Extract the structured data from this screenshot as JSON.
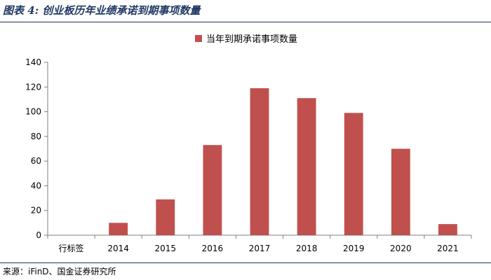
{
  "header": {
    "title": "图表 4:  创业板历年业绩承诺到期事项数量"
  },
  "footer": {
    "source": "来源：iFinD、国金证券研究所"
  },
  "colors": {
    "bar": "#c0504d",
    "rule": "#1f3864",
    "axis": "#7f7f7f"
  },
  "chart_data": {
    "type": "bar",
    "categories": [
      "行标签",
      "2014",
      "2015",
      "2016",
      "2017",
      "2018",
      "2019",
      "2020",
      "2021"
    ],
    "series": [
      {
        "name": "当年到期承诺事项数量",
        "values": [
          0,
          10,
          29,
          73,
          119,
          111,
          99,
          70,
          9
        ]
      }
    ],
    "title": "",
    "xlabel": "",
    "ylabel": "",
    "ylim": [
      0,
      140
    ],
    "yticks": [
      0,
      20,
      40,
      60,
      80,
      100,
      120,
      140
    ],
    "grid": false,
    "legend": "top-center"
  }
}
